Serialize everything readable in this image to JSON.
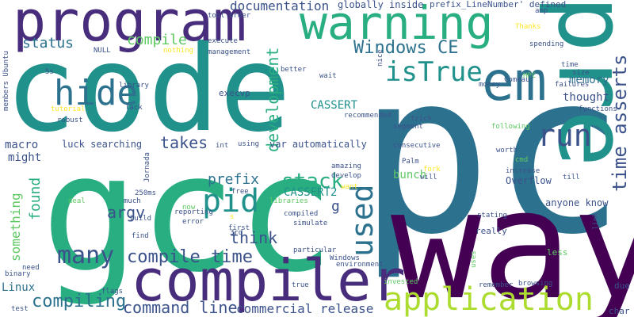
{
  "words": {
    "pc": "pc",
    "code": "code",
    "gcc": "gcc",
    "way": "way",
    "compiler": "compiler",
    "program": "program",
    "warning": "warning",
    "pre": "pre",
    "em": "em",
    "application": "application",
    "hide": "hide",
    "pid": "pid",
    "isTrue": "isTrue",
    "run": "run",
    "used": "used",
    "many": "many",
    "compile_time": "compile time",
    "compiling": "compiling",
    "command_line": "command line",
    "commercial_release": "commercial release",
    "time_asserts": "time asserts",
    "windows_ce": "Windows CE",
    "documentation": "documentation",
    "development": "development",
    "stack": "stack",
    "takes": "takes",
    "compile": "compile",
    "status": "status",
    "argv": "argv",
    "found": "found",
    "something": "something",
    "think": "think",
    "prefix": "prefix",
    "cassert": "CASSERT",
    "cassert2": "CASSERT2",
    "memory": "memory",
    "thought": "thought",
    "bunch": "bunch",
    "macro": "macro",
    "might": "might",
    "linux": "Linux",
    "globally_inside": "globally inside",
    "prefix_linenumber": "prefix_LineNumber' defined",
    "luck_searching": "luck searching",
    "var_automatically": "var automatically",
    "execvp": "execvp",
    "g": "g",
    "anyone_know": "anyone know",
    "overflow": "Overflow",
    "really": "really",
    "less": "less",
    "due": "due",
    "char": "char",
    "nice": "nice",
    "amp": "amp",
    "tool_order": "tool order",
    "thanks": "Thanks",
    "spending": "spending",
    "time": "time",
    "size": "size",
    "hpc": "HPC",
    "comeau": "Comeau",
    "money": "money",
    "failures": "failures",
    "functions": "functions",
    "following": "following",
    "worth": "worth",
    "cmd": "cmd",
    "increase": "increase",
    "till": "till",
    "link": "link",
    "will": "will",
    "fork": "fork",
    "palm": "Palm",
    "consecutive": "consecutive",
    "trick": "trick",
    "segment": "segment",
    "recommended": "recommended",
    "wait": "wait",
    "better": "better",
    "management": "management",
    "execute": "execute",
    "nothing": "nothing",
    "null": "NULL",
    "members_ubuntu": "members Ubuntu",
    "fives": "5s",
    "tutorial": "tutorial",
    "lack": "lack",
    "library": "library",
    "robust": "robust",
    "int": "int",
    "using": "using",
    "jornada": "Jornada",
    "amazing": "amazing",
    "develop": "develop",
    "want": "want",
    "free": "free",
    "ms250": "250ms",
    "much": "much",
    "build": "build",
    "deal": "deal",
    "reporting": "reporting",
    "now": "now",
    "libraries": "libraries",
    "simulate": "simulate",
    "compiled": "compiled",
    "first": "first",
    "find": "find",
    "error": "error",
    "particular": "particular",
    "windows": "Windows",
    "environment": "environment",
    "third": "3rd",
    "flags": "flags",
    "binary": "binary",
    "need": "need",
    "test": "test",
    "true": "true",
    "invested": "invested",
    "remember": "remember",
    "browsing": "browsing",
    "stating": "stating",
    "uses": "uses",
    "s": "s"
  },
  "colors": {
    "dark_purple": "#440154",
    "purple": "#472d7b",
    "indigo": "#3b528b",
    "blue": "#2c728e",
    "teal": "#21918c",
    "green_teal": "#28ae80",
    "green": "#5ec962",
    "yellow_green": "#addc30",
    "yellow": "#fde725"
  }
}
